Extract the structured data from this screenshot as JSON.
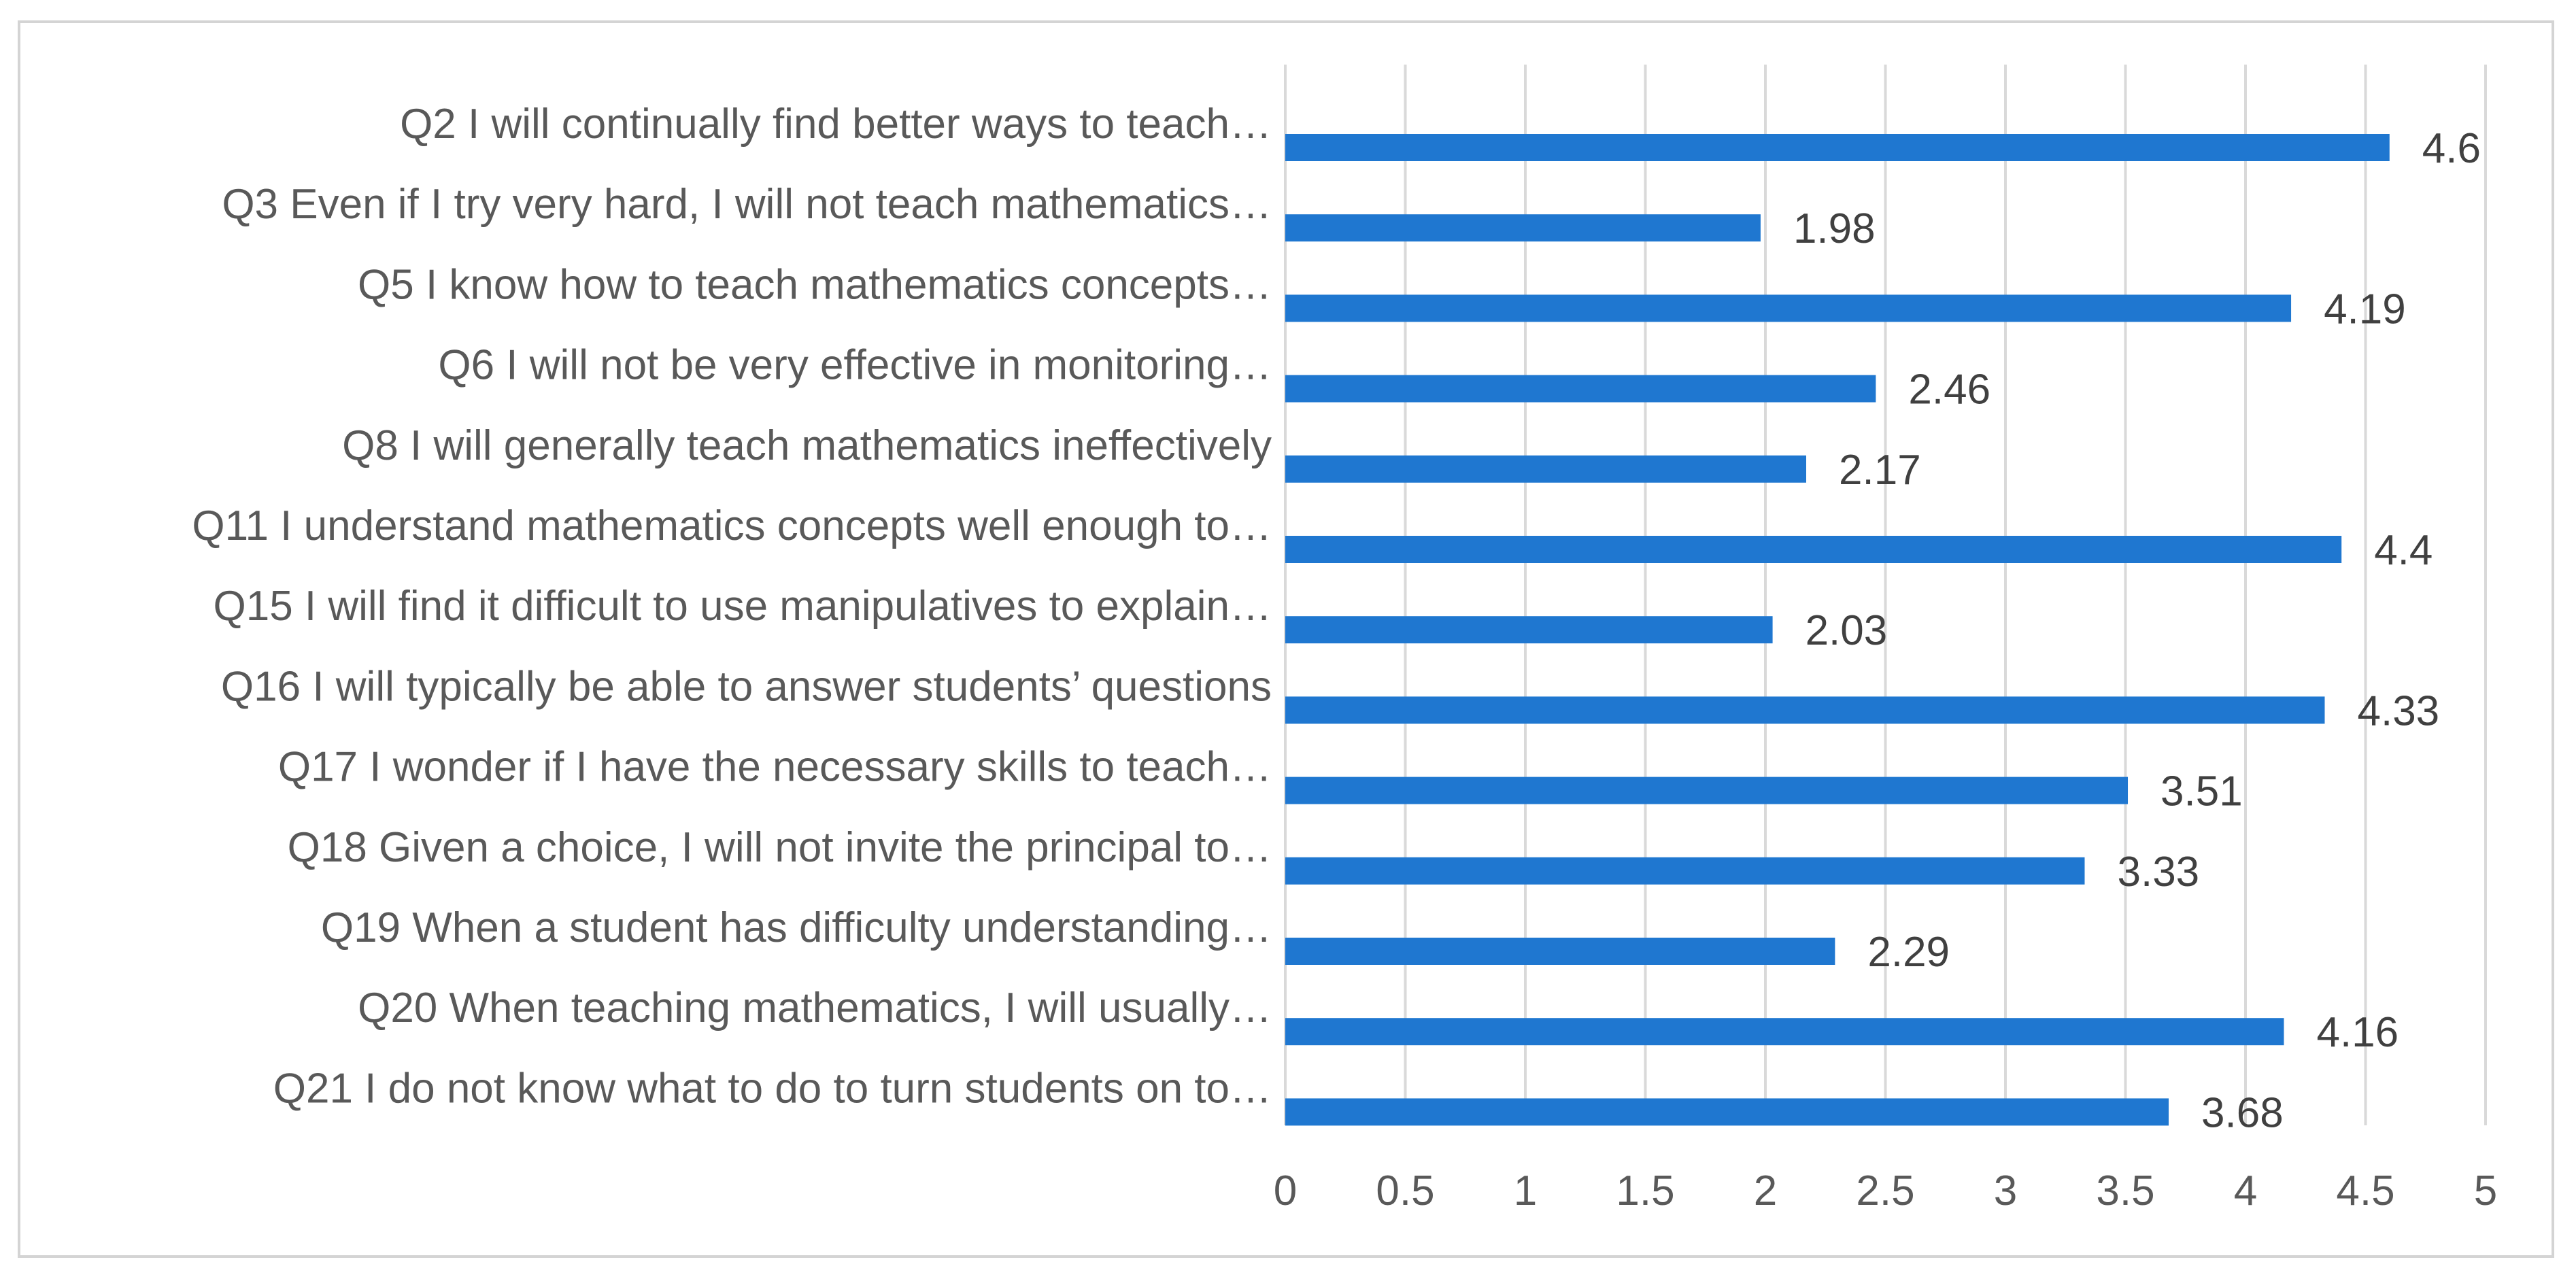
{
  "chart_data": {
    "type": "bar",
    "orientation": "horizontal",
    "title": "",
    "xlabel": "",
    "ylabel": "",
    "xlim": [
      0,
      5
    ],
    "x_ticks": [
      "0",
      "0.5",
      "1",
      "1.5",
      "2",
      "2.5",
      "3",
      "3.5",
      "4",
      "4.5",
      "5"
    ],
    "grid": true,
    "legend": "none",
    "bar_color": "#1f77d0",
    "categories": [
      "Q2 I will continually find better ways to teach…",
      "Q3 Even if I try very hard, I will not teach mathematics…",
      "Q5 I know how to teach mathematics concepts…",
      "Q6 I will not be very effective in monitoring…",
      "Q8 I will generally teach mathematics ineffectively",
      "Q11 I understand mathematics concepts well enough to…",
      "Q15 I will find it difficult to use manipulatives to explain…",
      "Q16 I will typically be able to answer students’ questions",
      "Q17 I wonder if I have the necessary skills to teach…",
      "Q18 Given a choice, I will not invite the principal to…",
      "Q19 When a student has difficulty understanding…",
      "Q20 When teaching mathematics, I will usually…",
      "Q21 I do not know what to do to turn students on to…"
    ],
    "values": [
      4.6,
      1.98,
      4.19,
      2.46,
      2.17,
      4.4,
      2.03,
      4.33,
      3.51,
      3.33,
      2.29,
      4.16,
      3.68
    ],
    "value_labels": [
      "4.6",
      "1.98",
      "4.19",
      "2.46",
      "2.17",
      "4.4",
      "2.03",
      "4.33",
      "3.51",
      "3.33",
      "2.29",
      "4.16",
      "3.68"
    ]
  }
}
